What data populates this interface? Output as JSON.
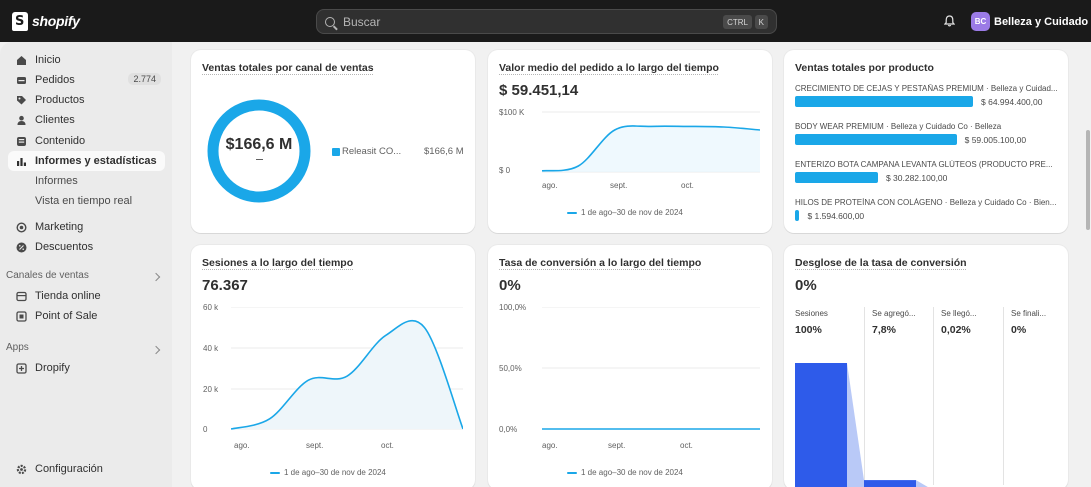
{
  "topbar": {
    "logo_text": "shopify",
    "search_placeholder": "Buscar",
    "kbd_ctrl": "CTRL",
    "kbd_k": "K",
    "avatar_initials": "BC",
    "store_name": "Belleza y Cuidado Co"
  },
  "sidebar": {
    "items": [
      {
        "label": "Inicio",
        "icon": "home-icon"
      },
      {
        "label": "Pedidos",
        "icon": "orders-icon",
        "badge": "2.774"
      },
      {
        "label": "Productos",
        "icon": "tag-icon"
      },
      {
        "label": "Clientes",
        "icon": "person-icon"
      },
      {
        "label": "Contenido",
        "icon": "content-icon"
      },
      {
        "label": "Informes y estadísticas",
        "icon": "analytics-icon"
      },
      {
        "label": "Informes"
      },
      {
        "label": "Vista en tiempo real"
      },
      {
        "label": "Marketing",
        "icon": "target-icon"
      },
      {
        "label": "Descuentos",
        "icon": "discount-icon"
      }
    ],
    "sales_channels_label": "Canales de ventas",
    "sales_channels": [
      {
        "label": "Tienda online",
        "icon": "store-icon"
      },
      {
        "label": "Point of Sale",
        "icon": "pos-icon"
      }
    ],
    "apps_label": "Apps",
    "apps": [
      {
        "label": "Dropify",
        "icon": "app-icon"
      }
    ],
    "settings_label": "Configuración"
  },
  "cards": {
    "sales_channel": {
      "title": "Ventas totales por canal de ventas",
      "center_value": "$166,6 M",
      "legend_name": "Releasit CO...",
      "legend_value": "$166,6 M",
      "color": "#1aa7e8"
    },
    "aov": {
      "title": "Valor medio del pedido a lo largo del tiempo",
      "value": "$ 59.451,14",
      "y_ticks": [
        "$100 K",
        "$ 0"
      ],
      "x_ticks": [
        "ago.",
        "sept.",
        "oct."
      ],
      "legend": "1 de ago–30 de nov de 2024"
    },
    "product": {
      "title": "Ventas totales por producto",
      "items": [
        {
          "name": "CRECIMIENTO DE CEJAS Y PESTAÑAS PREMIUM · Belleza y Cuidad...",
          "value": "$ 64.994.400,00",
          "share": 1.0
        },
        {
          "name": "BODY WEAR PREMIUM · Belleza y Cuidado Co · Belleza",
          "value": "$ 59.005.100,00",
          "share": 0.908
        },
        {
          "name": "ENTERIZO BOTA CAMPANA LEVANTA GLÚTEOS (PRODUCTO PRE...",
          "value": "$ 30.282.100,00",
          "share": 0.466
        },
        {
          "name": "HILOS DE PROTEÍNA CON COLÁGENO · Belleza y Cuidado Co · Bien...",
          "value": "$ 1.594.600,00",
          "share": 0.025
        }
      ]
    },
    "sessions": {
      "title": "Sesiones a lo largo del tiempo",
      "value": "76.367",
      "y_ticks": [
        "60 k",
        "40 k",
        "20 k",
        "0"
      ],
      "x_ticks": [
        "ago.",
        "sept.",
        "oct."
      ],
      "legend": "1 de ago–30 de nov de 2024"
    },
    "conversion": {
      "title": "Tasa de conversión a lo largo del tiempo",
      "value": "0%",
      "y_ticks": [
        "100,0%",
        "50,0%",
        "0,0%"
      ],
      "x_ticks": [
        "ago.",
        "sept.",
        "oct."
      ],
      "legend": "1 de ago–30 de nov de 2024"
    },
    "funnel": {
      "title": "Desglose de la tasa de conversión",
      "value": "0%",
      "steps": [
        {
          "label": "Sesiones",
          "value": "100%"
        },
        {
          "label": "Se agregó...",
          "value": "7,8%"
        },
        {
          "label": "Se llegó...",
          "value": "0,02%"
        },
        {
          "label": "Se finali...",
          "value": "0%"
        }
      ],
      "color": "#2e5bea"
    }
  },
  "chart_data": [
    {
      "type": "pie",
      "categories": [
        "Releasit CO..."
      ],
      "values": [
        166.6
      ]
    },
    {
      "type": "line",
      "x": [
        "ago.",
        "",
        "sept.",
        "",
        "oct.",
        "",
        ""
      ],
      "series": [
        {
          "values": [
            2,
            10,
            70,
            76,
            76,
            75,
            70
          ]
        }
      ],
      "ylim": [
        0,
        100
      ]
    },
    {
      "type": "bar",
      "categories": [
        "CRECIMIENTO DE CEJAS Y PESTAÑAS PREMIUM",
        "BODY WEAR PREMIUM",
        "ENTERIZO BOTA CAMPANA LEVANTA GLÚTEOS",
        "HILOS DE PROTEÍNA CON COLÁGENO"
      ],
      "values": [
        64994400,
        59005100,
        30282100,
        1594600
      ]
    },
    {
      "type": "area",
      "x": [
        "ago.",
        "",
        "sept.",
        "",
        "oct.",
        "",
        ""
      ],
      "series": [
        {
          "values": [
            0,
            5,
            24,
            26,
            46,
            50,
            0
          ]
        }
      ],
      "ylim": [
        0,
        60
      ]
    },
    {
      "type": "line",
      "x": [
        "ago.",
        "sept.",
        "oct."
      ],
      "series": [
        {
          "values": [
            0,
            0,
            0
          ]
        }
      ],
      "ylim": [
        0,
        100
      ]
    },
    {
      "type": "bar",
      "categories": [
        "Sesiones",
        "Se agregó...",
        "Se llegó...",
        "Se finali..."
      ],
      "values": [
        100,
        7.8,
        0.02,
        0
      ]
    }
  ]
}
